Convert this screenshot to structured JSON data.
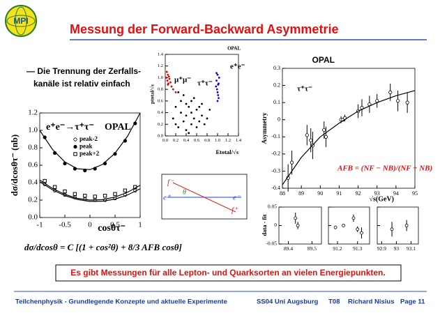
{
  "logo": {
    "text": "MPI"
  },
  "slide": {
    "title": "Messung der Forward-Backward Asymmetrie",
    "bullet": [
      "— Die Trennung der Zerfalls-",
      "kanäle ist relativ einfach"
    ],
    "formula": "dσ/dcosθ = C [(1 + cos²θ) + 8/3 AFB cosθ]",
    "conclusion": "Es gibt Messungen für alle Lepton- und Quarksorten an vielen Energiepunkten."
  },
  "diagram": {
    "labels": [
      "f⁻",
      "θ",
      "e⁺",
      "e⁻",
      "f⁺"
    ]
  },
  "footer": {
    "course": "Teilchenphysik - Grundlegende Konzepte und aktuelle Experimente",
    "term": "SS04 Uni Augsburg",
    "number": "T08",
    "author": "Richard Nisius",
    "page": "Page 11"
  },
  "chart_data": [
    {
      "type": "scatter",
      "x_label": "cosθτ⁻",
      "y_label": "dσ/dcosθτ⁻ (nb)",
      "annotations": [
        "e⁺e⁻→τ⁺τ⁻",
        "OPAL"
      ],
      "xlim": [
        -1,
        1
      ],
      "ylim": [
        0,
        1.2
      ],
      "xticks": [
        -1,
        -0.5,
        0,
        0.5,
        1
      ],
      "yticks": [
        {
          "value": 0,
          "label": "0.0"
        },
        {
          "value": 0.2,
          "label": "0.2"
        },
        {
          "value": 0.4,
          "label": "0.4"
        },
        {
          "value": 0.6,
          "label": "0.6"
        },
        {
          "value": 0.8,
          "label": "0.8"
        },
        {
          "value": 1,
          "label": "1.0"
        },
        {
          "value": 1.2,
          "label": "1.2"
        }
      ],
      "series": [
        {
          "name": "peak-2",
          "marker": "circle-open",
          "color": "#000000",
          "x": [
            -0.9,
            -0.7,
            -0.5,
            -0.3,
            -0.1,
            0.1,
            0.3,
            0.5,
            0.7,
            0.9
          ],
          "values": [
            0.38,
            0.31,
            0.26,
            0.23,
            0.21,
            0.2,
            0.2,
            0.22,
            0.26,
            0.31
          ]
        },
        {
          "name": "peak",
          "marker": "circle-filled",
          "color": "#000000",
          "x": [
            -0.9,
            -0.7,
            -0.5,
            -0.3,
            -0.1,
            0.1,
            0.3,
            0.5,
            0.7,
            0.9
          ],
          "values": [
            0.92,
            0.74,
            0.62,
            0.56,
            0.54,
            0.56,
            0.62,
            0.73,
            0.88,
            1.08
          ]
        },
        {
          "name": "peak+2",
          "marker": "square-open",
          "color": "#000000",
          "x": [
            -0.9,
            -0.7,
            -0.5,
            -0.3,
            -0.1,
            0.1,
            0.3,
            0.5,
            0.7,
            0.9
          ],
          "values": [
            0.42,
            0.35,
            0.3,
            0.27,
            0.25,
            0.24,
            0.25,
            0.27,
            0.31,
            0.35
          ]
        },
        {
          "marker": "line",
          "color": "#000000",
          "x": [
            -1,
            -0.75,
            -0.5,
            -0.25,
            0,
            0.25,
            0.5,
            0.75,
            1
          ],
          "values": [
            1,
            0.784,
            0.638,
            0.559,
            0.55,
            0.609,
            0.738,
            0.934,
            1.2
          ]
        },
        {
          "marker": "line",
          "color": "#000000",
          "x": [
            -1,
            -0.75,
            -0.5,
            -0.25,
            0,
            0.25,
            0.5,
            0.75,
            1
          ],
          "values": [
            0.41,
            0.319,
            0.251,
            0.207,
            0.185,
            0.187,
            0.211,
            0.259,
            0.33
          ]
        },
        {
          "marker": "line",
          "color": "#000000",
          "x": [
            -1,
            -0.75,
            -0.5,
            -0.25,
            0,
            0.25,
            0.5,
            0.75,
            1
          ],
          "values": [
            0.43,
            0.335,
            0.265,
            0.22,
            0.2,
            0.205,
            0.235,
            0.29,
            0.37
          ]
        }
      ]
    },
    {
      "type": "scatter",
      "title": "OPAL",
      "x_label": "Etotal/√s",
      "y_label": "ptotal/√s",
      "annotations": [
        "μ⁺μ⁻",
        "τ⁺τ⁻",
        "e⁺e⁻"
      ],
      "xlim": [
        0,
        1.4
      ],
      "ylim": [
        0,
        1.4
      ],
      "xticks": [
        {
          "value": 0,
          "label": "0.0"
        },
        {
          "value": 0.2,
          "label": "0.2"
        },
        {
          "value": 0.4,
          "label": "0.4"
        },
        {
          "value": 0.6,
          "label": "0.6"
        },
        {
          "value": 0.8,
          "label": "0.8"
        },
        {
          "value": 1,
          "label": "1.0"
        },
        {
          "value": 1.2,
          "label": "1.2"
        },
        {
          "value": 1.4,
          "label": "1.4"
        }
      ],
      "yticks": [
        {
          "value": 0,
          "label": "0.0"
        },
        {
          "value": 0.2,
          "label": "0.2"
        },
        {
          "value": 0.4,
          "label": "0.4"
        },
        {
          "value": 0.6,
          "label": "0.6"
        },
        {
          "value": 0.8,
          "label": "0.8"
        },
        {
          "value": 1,
          "label": "1.0"
        },
        {
          "value": 1.2,
          "label": "1.2"
        },
        {
          "value": 1.4,
          "label": "1.4"
        }
      ],
      "series": [
        {
          "marker": "dot",
          "color": "#000000",
          "x": [
            0.15,
            0.2,
            0.25,
            0.3,
            0.3,
            0.35,
            0.4,
            0.4,
            0.45,
            0.5,
            0.5,
            0.55,
            0.55,
            0.6,
            0.6,
            0.65,
            0.7,
            0.7,
            0.75,
            0.8,
            0.85,
            0.35,
            0.25,
            0.45,
            0.2,
            0.65,
            0.5,
            0.4
          ],
          "values": [
            0.3,
            0.5,
            0.15,
            0.4,
            0.6,
            0.25,
            0.35,
            0.1,
            0.5,
            0.2,
            0.4,
            0.3,
            0.65,
            0.15,
            0.45,
            0.25,
            0.35,
            0.55,
            0.2,
            0.3,
            0.45,
            0.7,
            0.75,
            0.05,
            0.2,
            0.5,
            0.6,
            0.55
          ]
        },
        {
          "marker": "dot",
          "color": "#e00000",
          "x": [
            0.02,
            0.04,
            0.05,
            0.06,
            0.03,
            0.08,
            0.1,
            0.12,
            0.07,
            0.15,
            0.2,
            0.05
          ],
          "values": [
            1,
            0.95,
            1.05,
            0.9,
            1.1,
            0.98,
            0.92,
            0.85,
            1.02,
            0.8,
            0.75,
            0.88
          ]
        },
        {
          "marker": "dot",
          "color": "#0000e0",
          "x": [
            0.98,
            1,
            1.02,
            0.99,
            1.01,
            1,
            0.97,
            1.03,
            1,
            0.98,
            1.02,
            1.01
          ],
          "values": [
            0.95,
            1.05,
            0.9,
            0.8,
            0.7,
            0.6,
            0.85,
            1,
            0.75,
            1.08,
            0.65,
            0.88
          ]
        }
      ]
    },
    {
      "type": "scatter",
      "title": "OPAL",
      "x_label": "√s(GeV)",
      "y_label": "Asymmetry",
      "annotations": [
        "τ⁺τ⁻",
        "AFB = (NF − NB)/(NF + NB)"
      ],
      "xlim": [
        88,
        95
      ],
      "ylim": [
        -0.4,
        0.3
      ],
      "xticks": [
        88,
        89,
        90,
        91,
        92,
        93,
        94,
        95
      ],
      "yticks": [
        -0.4,
        -0.3,
        -0.2,
        -0.1,
        0,
        0.1,
        0.2,
        0.3
      ],
      "series": [
        {
          "marker": "circle-open",
          "color": "#000000",
          "x": [
            88.3,
            88.5,
            89.3,
            89.5,
            89.6,
            90.2,
            90.3,
            91.1,
            91.2,
            91.3,
            92,
            92.2,
            92.6,
            93,
            93.7,
            94.1,
            94.6
          ],
          "values": [
            -0.34,
            -0.25,
            -0.09,
            -0.12,
            -0.15,
            -0.06,
            -0.1,
            0,
            0,
            0.01,
            0.05,
            0.07,
            0.09,
            0.11,
            0.16,
            0.11,
            0.1
          ],
          "errors": [
            0.08,
            0.07,
            0.06,
            0.07,
            0.08,
            0.05,
            0.06,
            0.02,
            0.01,
            0.02,
            0.04,
            0.05,
            0.05,
            0.04,
            0.05,
            0.06,
            0.06
          ]
        },
        {
          "marker": "line",
          "color": "#000000",
          "x": [
            88,
            89,
            90,
            91,
            92,
            93,
            94,
            95
          ],
          "values": [
            -0.38,
            -0.22,
            -0.1,
            -0.02,
            0.05,
            0.1,
            0.14,
            0.17
          ]
        }
      ]
    },
    {
      "type": "scatter",
      "y_label": "data - fit",
      "xlim": [
        89.36,
        89.54
      ],
      "ylim": [
        -0.05,
        0.05
      ],
      "xticks": [
        89.4,
        89.5
      ],
      "yticks": [
        -0.05,
        0,
        0.05
      ],
      "series": [
        {
          "marker": "circle-open",
          "color": "#000000",
          "x": [
            89.43,
            89.44
          ],
          "values": [
            0.02,
            0
          ],
          "errors": [
            0.015,
            0.01
          ]
        }
      ]
    },
    {
      "type": "scatter",
      "xlim": [
        91.155,
        91.36
      ],
      "ylim": [
        -0.05,
        0.05
      ],
      "xticks": [
        91.2,
        91.3
      ],
      "series": [
        {
          "marker": "circle-open",
          "color": "#000000",
          "x": [
            91.19,
            91.23,
            91.28,
            91.3,
            91.32
          ],
          "values": [
            -0.005,
            0,
            0.02,
            -0.01,
            -0.02
          ],
          "errors": [
            0.005,
            0.004,
            0.01,
            0.008,
            0.015
          ]
        }
      ]
    },
    {
      "type": "scatter",
      "xlim": [
        92.87,
        93.15
      ],
      "ylim": [
        -0.05,
        0.05
      ],
      "xticks": [
        92.9,
        93,
        93.1
      ],
      "series": [
        {
          "marker": "circle-open",
          "color": "#000000",
          "x": [
            92.97,
            93.07
          ],
          "values": [
            -0.01,
            0
          ],
          "errors": [
            0.02,
            0.015
          ]
        }
      ]
    }
  ]
}
